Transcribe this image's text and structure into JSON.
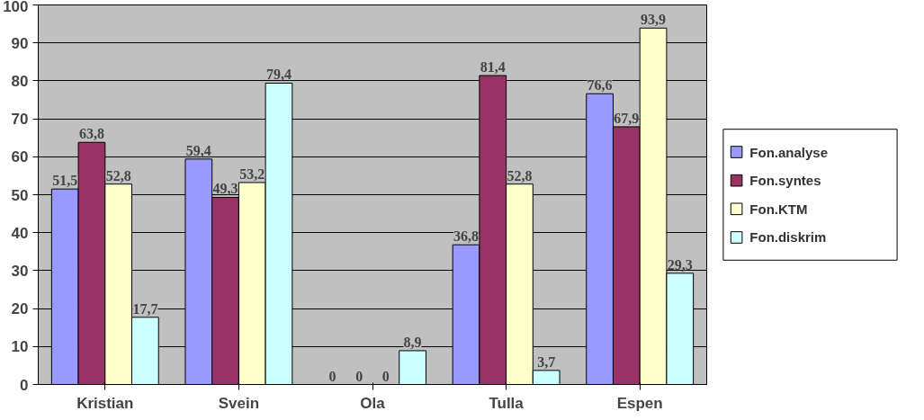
{
  "chart_data": {
    "type": "bar",
    "categories": [
      "Kristian",
      "Svein",
      "Ola",
      "Tulla",
      "Espen"
    ],
    "series": [
      {
        "name": "Fon.analyse",
        "color": "#9999ff",
        "values": [
          51.5,
          59.4,
          0,
          36.8,
          76.6
        ],
        "value_labels": [
          "51,5",
          "59,4",
          "0",
          "36,8",
          "76,6"
        ]
      },
      {
        "name": "Fon.syntes",
        "color": "#993366",
        "values": [
          63.8,
          49.3,
          0,
          81.4,
          67.9
        ],
        "value_labels": [
          "63,8",
          "49,3",
          "0",
          "81,4",
          "67,9"
        ]
      },
      {
        "name": "Fon.KTM",
        "color": "#ffffcc",
        "values": [
          52.8,
          53.2,
          0,
          52.8,
          93.9
        ],
        "value_labels": [
          "52,8",
          "53,2",
          "0",
          "52,8",
          "93,9"
        ]
      },
      {
        "name": "Fon.diskrim",
        "color": "#ccffff",
        "values": [
          17.7,
          79.4,
          8.9,
          3.7,
          29.3
        ],
        "value_labels": [
          "17,7",
          "79,4",
          "8,9",
          "3,7",
          "29,3"
        ]
      }
    ],
    "ylim": [
      0,
      100
    ],
    "yticks": [
      0,
      10,
      20,
      30,
      40,
      50,
      60,
      70,
      80,
      90,
      100
    ],
    "grid": "y",
    "legend": "right"
  }
}
